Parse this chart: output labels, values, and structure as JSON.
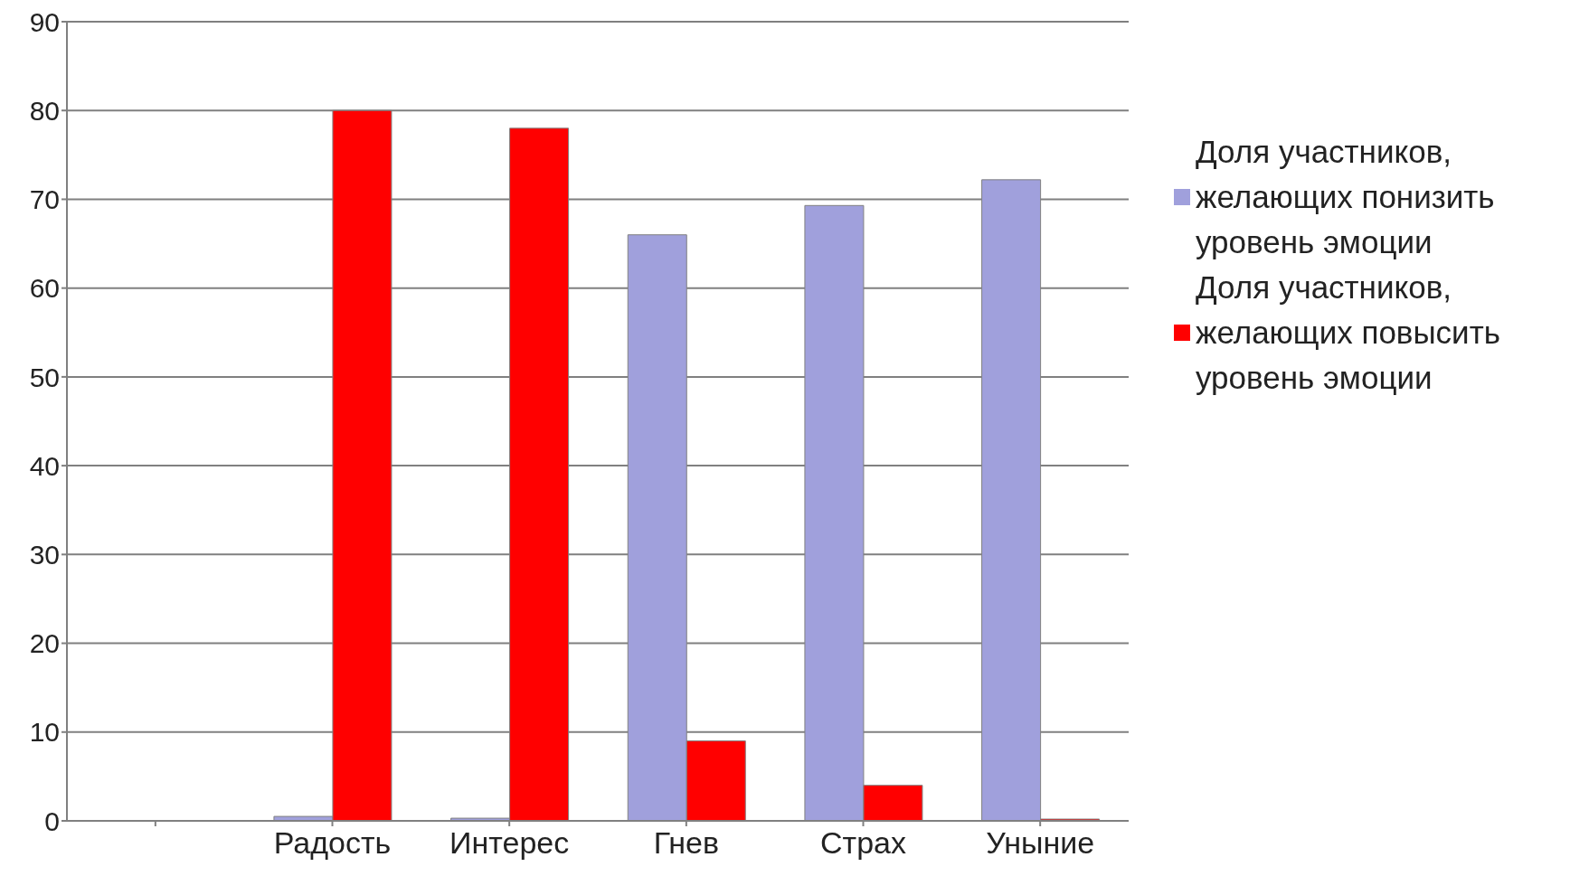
{
  "chart_data": {
    "type": "bar",
    "categories": [
      null,
      "Радость",
      "Интерес",
      "Гнев",
      "Страх",
      "Уныние"
    ],
    "series": [
      {
        "name": "Доля участников, желающих понизить уровень эмоции",
        "color": "#a0a0dc",
        "values": [
          null,
          0.5,
          0.3,
          66,
          69.3,
          72.2
        ]
      },
      {
        "name": "Доля участников, желающих повысить уровень эмоции",
        "color": "#ff0000",
        "values": [
          null,
          80,
          78,
          9,
          4,
          0.2
        ]
      }
    ],
    "ylim": [
      0,
      90
    ],
    "yticks": [
      0,
      10,
      20,
      30,
      40,
      50,
      60,
      70,
      80,
      90
    ],
    "grid": "y",
    "legend": "right"
  }
}
